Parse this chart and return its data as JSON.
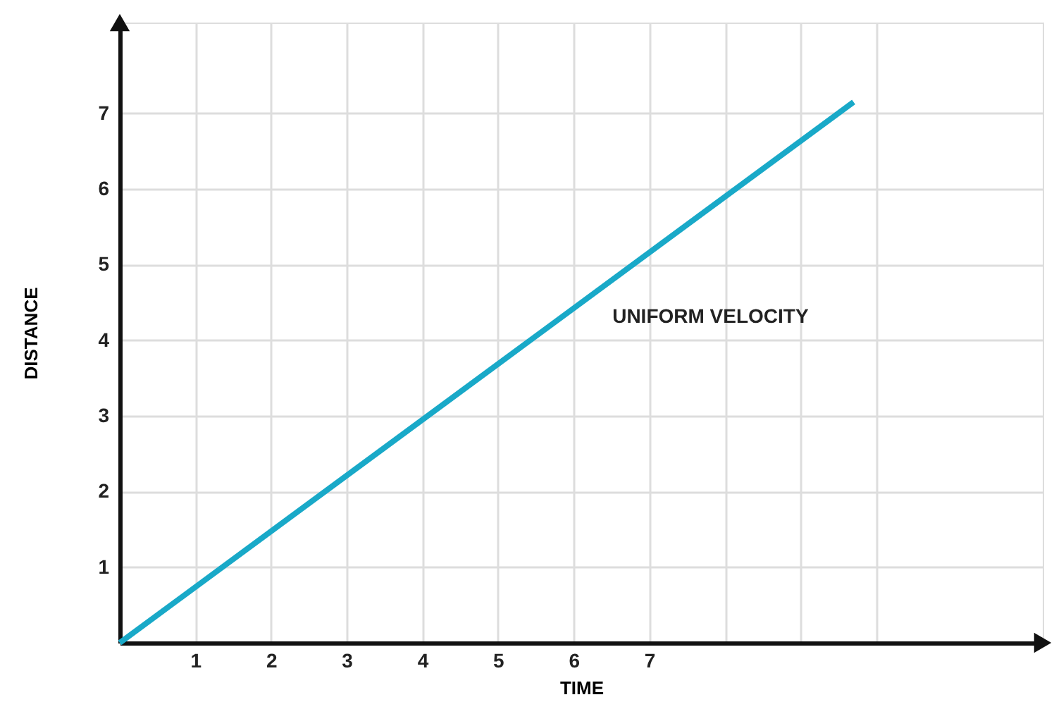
{
  "chart_data": {
    "type": "line",
    "xlabel": "TIME",
    "ylabel": "DISTANCE",
    "x": [
      0,
      9.7
    ],
    "series": [
      {
        "color": "#19a9c8",
        "values": [
          0,
          7.15
        ]
      }
    ],
    "xlim": [
      0,
      12.2
    ],
    "ylim": [
      0,
      8.2
    ],
    "xticks": [
      1,
      2,
      3,
      4,
      5,
      6,
      7,
      {
        "value": 8,
        "label": null
      },
      {
        "value": 9,
        "label": null
      },
      {
        "value": 10,
        "label": null
      }
    ],
    "yticks": [
      1,
      2,
      3,
      4,
      5,
      6,
      7
    ],
    "grid": true,
    "marker": "none",
    "line_style": "solid",
    "annotations": [
      "UNIFORM VELOCITY"
    ]
  }
}
